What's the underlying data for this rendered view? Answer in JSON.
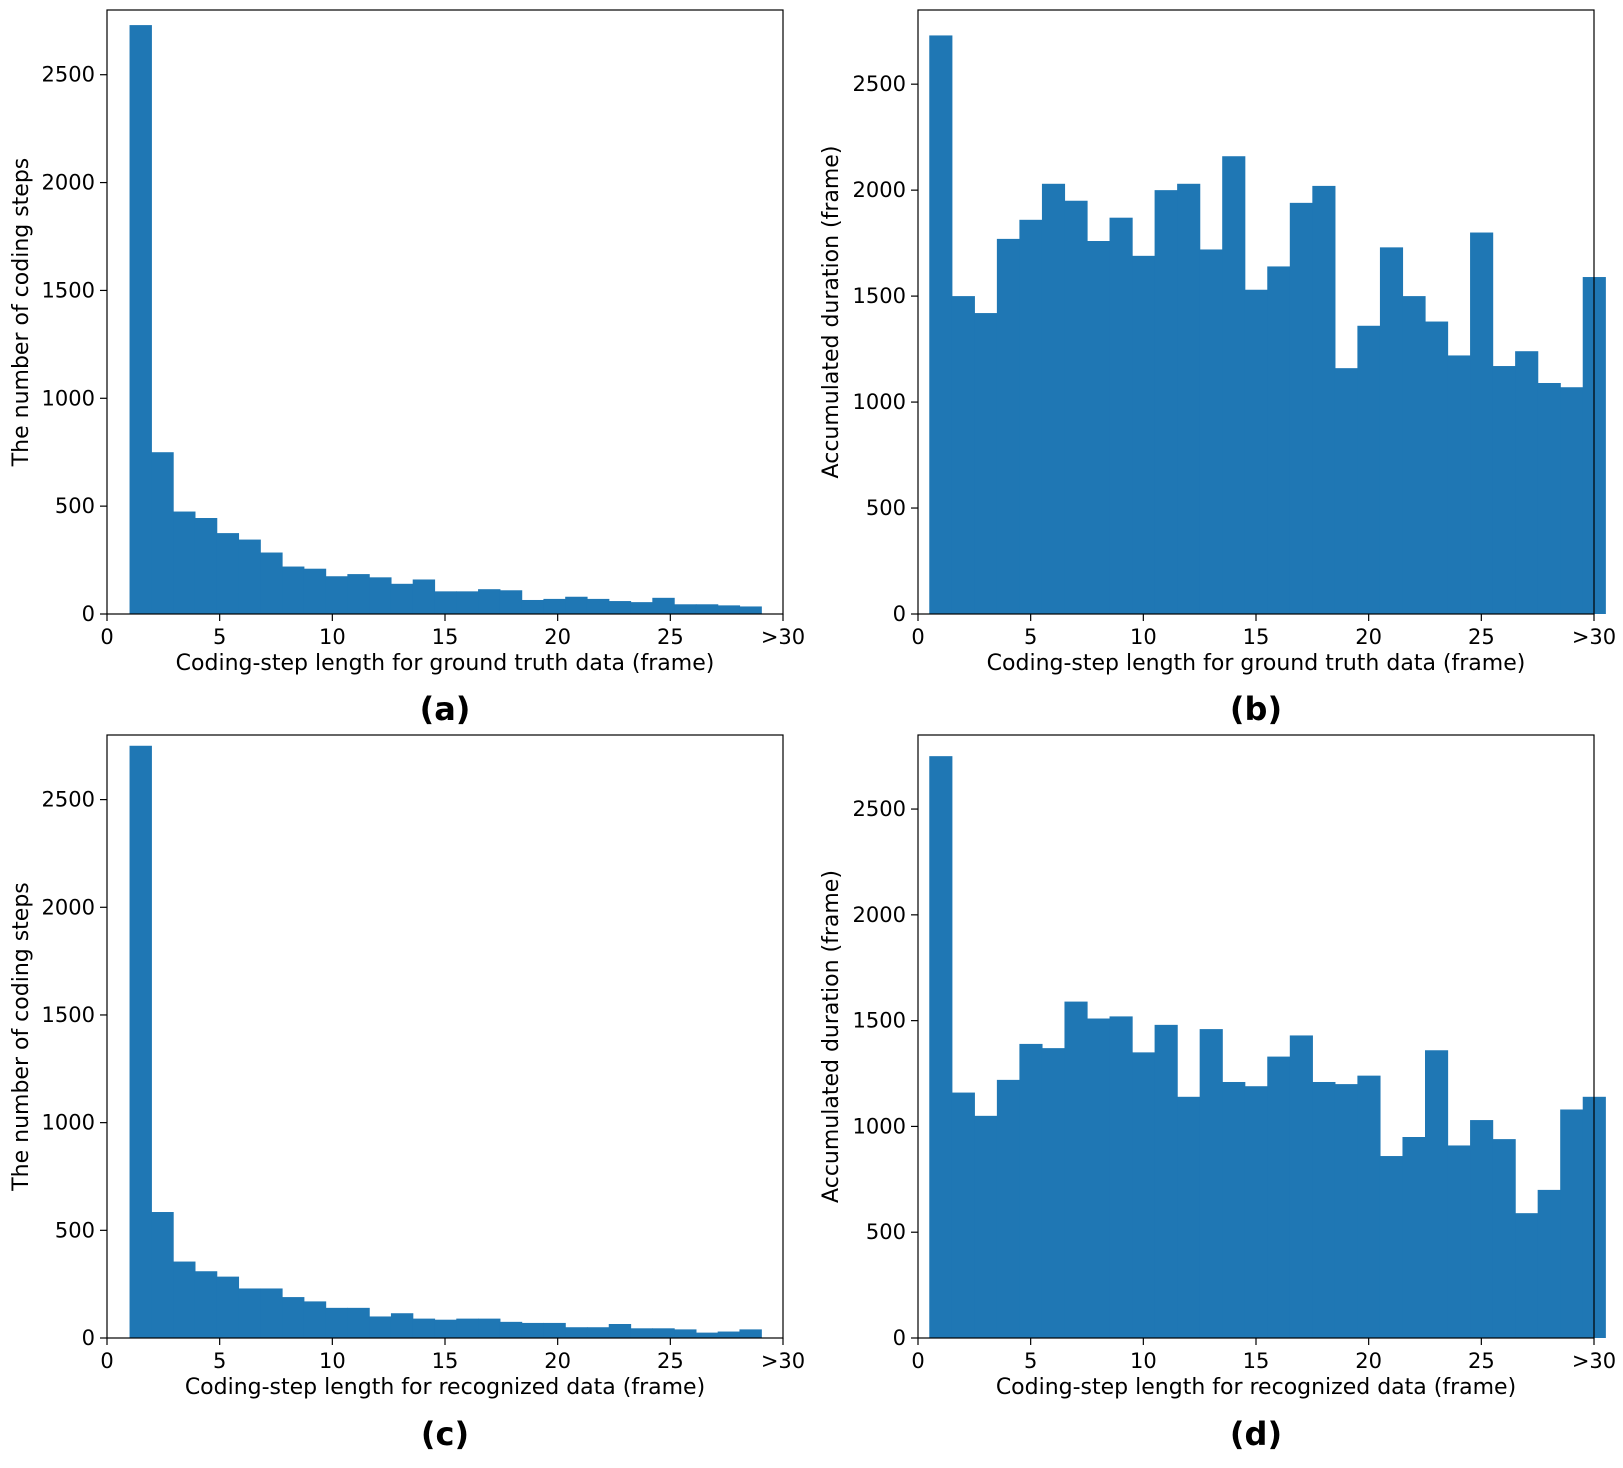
{
  "figure": {
    "bar_color": "#1f77b4"
  },
  "chart_data": [
    {
      "id": "a",
      "type": "bar",
      "panel_label": "(a)",
      "xlabel": "Coding-step length for ground truth data (frame)",
      "ylabel": "The number of coding steps",
      "xlim": [
        0,
        30
      ],
      "ylim": [
        0,
        2800
      ],
      "xticks": [
        0,
        5,
        10,
        15,
        20,
        25,
        30
      ],
      "xtick_labels": [
        "0",
        "5",
        "10",
        "15",
        "20",
        "25",
        ">30"
      ],
      "yticks": [
        0,
        500,
        1000,
        1500,
        2000,
        2500
      ],
      "ytick_labels": [
        "0",
        "500",
        "1000",
        "1500",
        "2000",
        "2500"
      ],
      "bin_start": 1,
      "bin_width": 0.9667,
      "values": [
        2730,
        750,
        475,
        445,
        375,
        345,
        285,
        220,
        210,
        175,
        185,
        170,
        140,
        160,
        105,
        105,
        115,
        110,
        65,
        70,
        80,
        70,
        60,
        55,
        75,
        45,
        45,
        40,
        35
      ]
    },
    {
      "id": "b",
      "type": "bar",
      "panel_label": "(b)",
      "xlabel": "Coding-step length for ground truth data (frame)",
      "ylabel": "Accumulated duration (frame)",
      "xlim": [
        0,
        30
      ],
      "ylim": [
        0,
        2850
      ],
      "xticks": [
        0,
        5,
        10,
        15,
        20,
        25,
        30
      ],
      "xtick_labels": [
        "0",
        "5",
        "10",
        "15",
        "20",
        "25",
        ">30"
      ],
      "yticks": [
        0,
        500,
        1000,
        1500,
        2000,
        2500
      ],
      "ytick_labels": [
        "0",
        "500",
        "1000",
        "1500",
        "2000",
        "2500"
      ],
      "bin_start": 0.5,
      "bin_width": 1.0,
      "values": [
        2730,
        1500,
        1420,
        1770,
        1860,
        2030,
        1950,
        1760,
        1870,
        1690,
        2000,
        2030,
        1720,
        2160,
        1530,
        1640,
        1940,
        2020,
        1160,
        1360,
        1730,
        1500,
        1380,
        1220,
        1800,
        1170,
        1240,
        1090,
        1070,
        1590
      ]
    },
    {
      "id": "c",
      "type": "bar",
      "panel_label": "(c)",
      "xlabel": "Coding-step length for recognized data (frame)",
      "ylabel": "The number of coding steps",
      "xlim": [
        0,
        30
      ],
      "ylim": [
        0,
        2800
      ],
      "xticks": [
        0,
        5,
        10,
        15,
        20,
        25,
        30
      ],
      "xtick_labels": [
        "0",
        "5",
        "10",
        "15",
        "20",
        "25",
        ">30"
      ],
      "yticks": [
        0,
        500,
        1000,
        1500,
        2000,
        2500
      ],
      "ytick_labels": [
        "0",
        "500",
        "1000",
        "1500",
        "2000",
        "2500"
      ],
      "bin_start": 1,
      "bin_width": 0.9667,
      "values": [
        2750,
        585,
        355,
        310,
        285,
        230,
        230,
        190,
        170,
        140,
        140,
        100,
        115,
        90,
        85,
        90,
        90,
        75,
        70,
        70,
        50,
        50,
        65,
        45,
        45,
        40,
        25,
        30,
        40
      ]
    },
    {
      "id": "d",
      "type": "bar",
      "panel_label": "(d)",
      "xlabel": "Coding-step length for recognized data (frame)",
      "ylabel": "Accumulated duration (frame)",
      "xlim": [
        0,
        30
      ],
      "ylim": [
        0,
        2850
      ],
      "xticks": [
        0,
        5,
        10,
        15,
        20,
        25,
        30
      ],
      "xtick_labels": [
        "0",
        "5",
        "10",
        "15",
        "20",
        "25",
        ">30"
      ],
      "yticks": [
        0,
        500,
        1000,
        1500,
        2000,
        2500
      ],
      "ytick_labels": [
        "0",
        "500",
        "1000",
        "1500",
        "2000",
        "2500"
      ],
      "bin_start": 0.5,
      "bin_width": 1.0,
      "values": [
        2750,
        1160,
        1050,
        1220,
        1390,
        1370,
        1590,
        1510,
        1520,
        1350,
        1480,
        1140,
        1460,
        1210,
        1190,
        1330,
        1430,
        1210,
        1200,
        1240,
        860,
        950,
        1360,
        910,
        1030,
        940,
        590,
        700,
        1080,
        1140
      ]
    }
  ]
}
